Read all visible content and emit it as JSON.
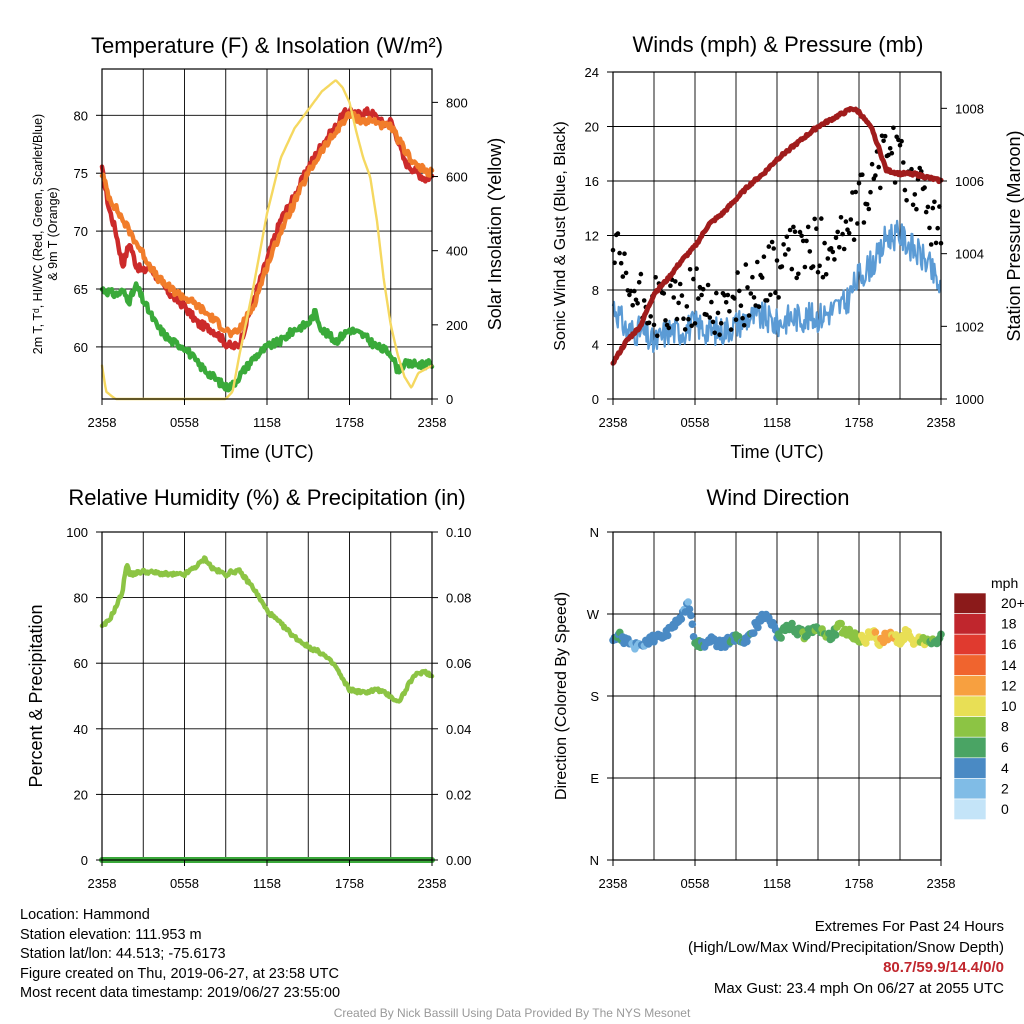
{
  "panels": {
    "temp": {
      "title": "Temperature (F) & Insolation (W/m²)",
      "ylabel_left_line1": "2m T, Tᵈ, HI/WC (Red, Green, Scarlet/Blue)",
      "ylabel_left_line2": "& 9m T (Orange)",
      "ylabel_right": "Solar Insolation (Yellow)",
      "xlabel": "Time (UTC)"
    },
    "winds": {
      "title": "Winds (mph) & Pressure (mb)",
      "ylabel_left": "Sonic Wind & Gust (Blue, Black)",
      "ylabel_right": "Station Pressure (Maroon)",
      "xlabel": "Time (UTC)"
    },
    "rh": {
      "title": "Relative Humidity (%) & Precipitation (in)",
      "ylabel_left": "Percent & Precipitation"
    },
    "dir": {
      "title": "Wind Direction",
      "ylabel_left": "Direction (Colored By Speed)",
      "colorbar_title": "mph",
      "colorbar_labels": [
        "20+",
        "18",
        "16",
        "14",
        "12",
        "10",
        "8",
        "6",
        "4",
        "2",
        "0"
      ],
      "colorbar_colors": [
        "#8b1a1a",
        "#c0262d",
        "#e03a2f",
        "#f0642e",
        "#f7a040",
        "#e8df55",
        "#8cc444",
        "#4aa464",
        "#4a8ac4",
        "#80bce6",
        "#c4e4f8"
      ]
    }
  },
  "chart_data": [
    {
      "type": "line",
      "title": "Temperature (F) & Insolation (W/m²)",
      "xlabel": "Time (UTC)",
      "x_ticks": [
        "2358",
        "0558",
        "1158",
        "1758",
        "2358"
      ],
      "x_range_hours": [
        0,
        24
      ],
      "ylim_left": [
        55.5,
        84
      ],
      "y_ticks_left": [
        60,
        65,
        70,
        75,
        80
      ],
      "ylim_right": [
        0,
        890
      ],
      "y_ticks_right": [
        0,
        200,
        400,
        600,
        800
      ],
      "grid": true,
      "series": [
        {
          "name": "Red",
          "color": "#cc2a2a",
          "axis": "left",
          "x": [
            0,
            0.5,
            1,
            1.5,
            2,
            2.5,
            3,
            3.5,
            4,
            5,
            6,
            7,
            8,
            8.5,
            9,
            9.5,
            10,
            11,
            12,
            13,
            14,
            15,
            16,
            17,
            17.5,
            18,
            18.5,
            19,
            19.5,
            20,
            20.5,
            21,
            21.5,
            22,
            22.5,
            23,
            23.5,
            24
          ],
          "y": [
            75.3,
            72,
            70,
            67,
            69,
            67,
            66.5,
            67,
            66,
            64.5,
            63.5,
            62,
            61.5,
            61,
            60.3,
            60,
            60.2,
            64,
            67.5,
            71,
            73,
            75.5,
            77.5,
            79,
            80,
            80.5,
            80,
            80.3,
            80.3,
            79.8,
            79.2,
            79.5,
            78,
            76,
            75.5,
            75,
            74.5,
            74.8
          ]
        },
        {
          "name": "Orange",
          "color": "#f17d2b",
          "axis": "left",
          "x": [
            0,
            0.5,
            1,
            2,
            3,
            4,
            5,
            6,
            7,
            8,
            8.5,
            9,
            9.5,
            10,
            11,
            12,
            13,
            14,
            15,
            16,
            17,
            17.5,
            18,
            18.5,
            19,
            19.5,
            20,
            20.5,
            21,
            22,
            23,
            24
          ],
          "y": [
            75,
            73,
            72,
            70,
            68,
            66,
            65,
            64.3,
            63.5,
            62.5,
            62,
            61.5,
            61,
            61.5,
            63.5,
            67,
            70,
            72.5,
            75,
            77,
            78.5,
            79.5,
            80,
            79.8,
            79.5,
            79.5,
            79.5,
            79,
            79,
            77,
            75.5,
            75
          ]
        },
        {
          "name": "Green",
          "color": "#3aaa3a",
          "axis": "left",
          "x": [
            0,
            1,
            1.5,
            2,
            2.5,
            3,
            4,
            5,
            6,
            7,
            8,
            8.5,
            9,
            9.5,
            10,
            11,
            12,
            13,
            14,
            15,
            15.5,
            16,
            17,
            18,
            19,
            20,
            21,
            21.5,
            22,
            23,
            24
          ],
          "y": [
            65,
            64.5,
            64.8,
            64,
            65.3,
            64,
            61.8,
            60.5,
            60,
            58.5,
            57.5,
            57,
            56.5,
            56.7,
            57.5,
            59,
            60,
            60.5,
            61.5,
            62,
            63,
            61.5,
            60.5,
            61.5,
            61,
            60,
            59.5,
            58,
            58.5,
            58.5,
            58.5
          ]
        },
        {
          "name": "Yellow",
          "color": "#f5d860",
          "axis": "right",
          "x": [
            0,
            0.3,
            0.8,
            1,
            2,
            3,
            4,
            5,
            6,
            7,
            8,
            9,
            9.5,
            10,
            11,
            12,
            13,
            14,
            15,
            16,
            17,
            17.5,
            18,
            18.5,
            19,
            19.5,
            20,
            20.5,
            21,
            21.5,
            22,
            22.5,
            23,
            24
          ],
          "y": [
            90,
            20,
            5,
            0,
            0,
            0,
            0,
            0,
            0,
            0,
            0,
            0,
            20,
            120,
            300,
            500,
            650,
            730,
            780,
            830,
            860,
            840,
            800,
            720,
            650,
            600,
            480,
            320,
            200,
            120,
            60,
            30,
            70,
            90
          ]
        }
      ]
    },
    {
      "type": "scatter",
      "title": "Winds (mph) & Pressure (mb)",
      "xlabel": "Time (UTC)",
      "x_ticks": [
        "2358",
        "0558",
        "1158",
        "1758",
        "2358"
      ],
      "x_range_hours": [
        0,
        24
      ],
      "ylim_left": [
        0,
        24
      ],
      "y_ticks_left": [
        0,
        4,
        8,
        12,
        16,
        20,
        24
      ],
      "ylim_right": [
        1000,
        1009
      ],
      "y_ticks_right": [
        1000,
        1002,
        1004,
        1006,
        1008
      ],
      "grid": true,
      "series": [
        {
          "name": "Blue",
          "color": "#5b9bd5",
          "axis": "left",
          "x": [
            0,
            1,
            2,
            3,
            4,
            5,
            6,
            7,
            8,
            9,
            10,
            11,
            12,
            13,
            14,
            15,
            16,
            17,
            18,
            19,
            19.5,
            20,
            21,
            22,
            23,
            24
          ],
          "y": [
            7,
            5,
            5,
            4,
            5,
            5,
            5.5,
            5,
            5,
            5.5,
            6,
            6,
            5.5,
            6,
            6,
            6,
            6.5,
            7,
            9,
            10,
            10.5,
            12,
            12,
            11,
            10,
            8
          ]
        },
        {
          "name": "Black",
          "color": "#000000",
          "axis": "left",
          "x": [
            0,
            1,
            2,
            3,
            4,
            5,
            6,
            7,
            8,
            9,
            10,
            11,
            12,
            13,
            14,
            15,
            16,
            17,
            18,
            19,
            19.5,
            20,
            21,
            22,
            23,
            24
          ],
          "y": [
            11,
            8,
            7,
            7,
            6.5,
            7,
            7.5,
            7,
            6.5,
            7,
            8,
            9,
            9.5,
            10.5,
            11,
            11,
            11.5,
            12,
            14,
            16,
            17,
            19,
            17,
            16,
            14,
            12
          ]
        },
        {
          "name": "Maroon",
          "color": "#a01c1c",
          "axis": "right",
          "x": [
            0,
            1,
            2,
            3,
            4,
            5,
            6,
            7,
            8,
            9,
            10,
            11,
            12,
            13,
            14,
            15,
            16,
            17,
            17.5,
            18,
            19,
            20,
            21,
            22,
            23,
            24
          ],
          "y": [
            1001,
            1001.6,
            1002,
            1002.9,
            1003.3,
            1003.8,
            1004.2,
            1004.8,
            1005.1,
            1005.5,
            1005.9,
            1006.2,
            1006.6,
            1006.9,
            1007.2,
            1007.5,
            1007.7,
            1007.9,
            1008,
            1007.9,
            1007.4,
            1006.3,
            1006.2,
            1006.2,
            1006.1,
            1006
          ]
        }
      ]
    },
    {
      "type": "line",
      "title": "Relative Humidity (%) & Precipitation (in)",
      "x_ticks": [
        "2358",
        "0558",
        "1158",
        "1758",
        "2358"
      ],
      "x_range_hours": [
        0,
        24
      ],
      "ylim_left": [
        0,
        100
      ],
      "y_ticks_left": [
        0,
        20,
        40,
        60,
        80,
        100
      ],
      "ylim_right": [
        0,
        0.1
      ],
      "y_ticks_right": [
        "0.00",
        "0.02",
        "0.04",
        "0.06",
        "0.08",
        "0.10"
      ],
      "grid": true,
      "series": [
        {
          "name": "RH",
          "color": "#8cc444",
          "axis": "left",
          "x": [
            0,
            0.5,
            1,
            1.5,
            1.8,
            2,
            3,
            4,
            5,
            6,
            7,
            7.5,
            8,
            9,
            9.5,
            10,
            11,
            12,
            13,
            14,
            15,
            16,
            17,
            17.5,
            18,
            19,
            20,
            20.5,
            21,
            21.5,
            22,
            22.5,
            23,
            23.5,
            24
          ],
          "y": [
            71,
            73,
            77,
            82,
            91,
            87,
            88,
            87.5,
            87,
            87,
            90,
            92,
            89,
            87,
            88,
            88,
            83,
            76,
            72,
            68,
            65,
            63,
            59,
            55,
            52,
            51,
            52,
            51,
            50,
            48,
            51,
            55,
            57,
            57.5,
            56
          ]
        },
        {
          "name": "Precip",
          "color": "#3aa83a",
          "axis": "right",
          "x": [
            0,
            24
          ],
          "y": [
            0,
            0
          ]
        }
      ]
    },
    {
      "type": "scatter",
      "title": "Wind Direction",
      "x_ticks": [
        "2358",
        "0558",
        "1158",
        "1758",
        "2358"
      ],
      "x_range_hours": [
        0,
        24
      ],
      "y_ticks": [
        "N",
        "E",
        "S",
        "W",
        "N"
      ],
      "ylim_deg": [
        0,
        360
      ],
      "grid": true,
      "colorbar": {
        "title": "mph",
        "range": [
          0,
          20
        ]
      },
      "points": {
        "x": [
          0,
          0.5,
          1,
          1.5,
          2,
          2.5,
          3,
          3.5,
          4,
          4.5,
          5,
          5.5,
          6,
          6.5,
          7,
          7.5,
          8,
          8.5,
          9,
          9.5,
          10,
          10.5,
          11,
          11.5,
          12,
          12.5,
          13,
          13.5,
          14,
          14.5,
          15,
          15.5,
          16,
          16.5,
          17,
          17.5,
          18,
          18.5,
          19,
          19.5,
          20,
          20.5,
          21,
          21.5,
          22,
          22.5,
          23,
          23.5,
          24
        ],
        "dir": [
          245,
          245,
          240,
          236,
          238,
          240,
          244,
          246,
          250,
          256,
          268,
          282,
          238,
          236,
          242,
          238,
          236,
          240,
          244,
          242,
          246,
          258,
          268,
          262,
          246,
          250,
          258,
          252,
          246,
          252,
          256,
          248,
          244,
          256,
          252,
          248,
          243,
          242,
          250,
          240,
          246,
          246,
          240,
          252,
          242,
          242,
          238,
          240,
          245
        ],
        "speed": [
          4,
          5,
          4,
          3,
          3,
          4,
          4,
          4,
          4,
          4,
          4,
          3,
          6,
          5,
          4,
          4,
          4,
          5,
          5,
          5,
          5,
          4,
          4,
          4,
          5,
          6,
          6,
          6,
          7,
          6,
          7,
          7,
          6,
          7,
          8,
          7,
          9,
          10,
          10,
          11,
          12,
          11,
          11,
          10,
          10,
          9,
          8,
          7,
          6
        ]
      }
    }
  ],
  "info_left": {
    "location": "Location: Hammond",
    "elevation": "Station elevation: 111.953 m",
    "latlon": "Station lat/lon: 44.513; -75.6173",
    "created": "Figure created on Thu, 2019-06-27, at 23:58 UTC",
    "recent": "Most recent data timestamp: 2019/06/27 23:55:00"
  },
  "info_right": {
    "line1": "Extremes For Past 24 Hours",
    "line2": "(High/Low/Max Wind/Precipitation/Snow Depth)",
    "extremes": "80.7/59.9/14.4/0/0",
    "gust": "Max Gust: 23.4 mph On 06/27 at 2055 UTC"
  },
  "credit": "Created By Nick Bassill Using Data Provided By The NYS Mesonet"
}
